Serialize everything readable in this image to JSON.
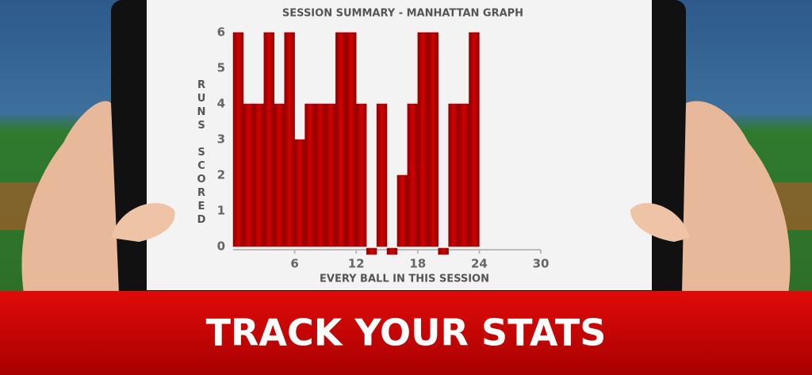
{
  "chart_data": {
    "type": "bar",
    "title": "SESSION SUMMARY - MANHATTAN GRAPH",
    "x_label": "EVERY BALL IN THIS SESSION",
    "y_label": "RUNS SCORED",
    "x": [
      1,
      2,
      3,
      4,
      5,
      6,
      7,
      8,
      9,
      10,
      11,
      12,
      13,
      14,
      15,
      16,
      17,
      18,
      19,
      20,
      21,
      22,
      23,
      24
    ],
    "values": [
      6,
      4,
      4,
      6,
      4,
      6,
      3,
      4,
      4,
      4,
      6,
      6,
      4,
      0,
      4,
      0,
      2,
      4,
      6,
      6,
      0,
      4,
      4,
      6
    ],
    "color": "#b80000",
    "xlim": [
      0,
      30
    ],
    "xticks": [
      6,
      12,
      18,
      24,
      30
    ],
    "ylim": [
      0,
      6
    ],
    "yticks": [
      0,
      1,
      2,
      3,
      4,
      5,
      6
    ]
  },
  "banner": "TRACK YOUR STATS"
}
